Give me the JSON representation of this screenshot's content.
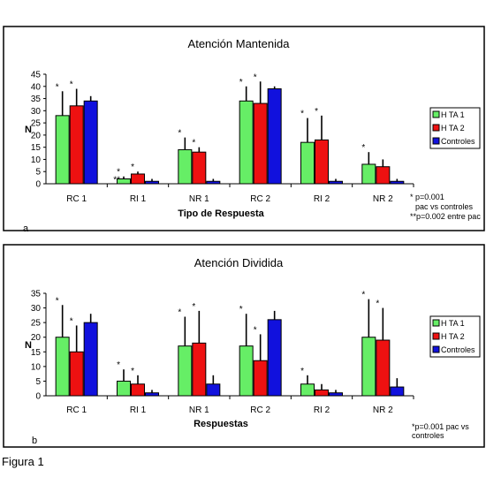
{
  "figure_caption": "Figura 1",
  "colors": {
    "hta1": "#66ee66",
    "hta2": "#ee1111",
    "controles": "#1111dd",
    "frame": "#000000"
  },
  "chart_data": [
    {
      "type": "bar",
      "panel_letter": "a",
      "title": "Atención Mantenida",
      "xlabel": "Tipo de Respuesta",
      "ylabel": "N",
      "ylim": [
        0,
        45
      ],
      "yticks": [
        "0",
        "5",
        "10",
        "15",
        "20",
        "25",
        "30",
        "35",
        "40",
        "45"
      ],
      "categories": [
        "RC 1",
        "RI 1",
        "NR 1",
        "RC 2",
        "RI 2",
        "NR 2"
      ],
      "series": [
        {
          "name": "H TA 1",
          "values": [
            28,
            2,
            14,
            34,
            17,
            8
          ],
          "err": [
            10,
            1,
            5,
            6,
            10,
            5
          ]
        },
        {
          "name": "H TA 2",
          "values": [
            32,
            4,
            13,
            33,
            18,
            7
          ],
          "err": [
            7,
            1,
            2,
            9,
            10,
            3
          ]
        },
        {
          "name": "Controles",
          "values": [
            34,
            1,
            1,
            39,
            1,
            1
          ],
          "err": [
            2,
            1,
            1,
            1,
            1,
            1
          ]
        }
      ],
      "annotations": [
        {
          "text": "*",
          "cat": 0,
          "s": 0
        },
        {
          "text": "*",
          "cat": 0,
          "s": 1
        },
        {
          "text": "*",
          "cat": 1,
          "s": 0
        },
        {
          "text": "**",
          "cat": 1,
          "s": 0
        },
        {
          "text": "*",
          "cat": 1,
          "s": 1
        },
        {
          "text": "*",
          "cat": 2,
          "s": 0
        },
        {
          "text": "*",
          "cat": 2,
          "s": 1
        },
        {
          "text": "*",
          "cat": 3,
          "s": 0
        },
        {
          "text": "*",
          "cat": 3,
          "s": 1
        },
        {
          "text": "*",
          "cat": 4,
          "s": 0
        },
        {
          "text": "*",
          "cat": 4,
          "s": 1
        },
        {
          "text": "*",
          "cat": 5,
          "s": 0
        }
      ],
      "notes": [
        "* p=0.001",
        "pac vs controles",
        "**p=0.002 entre pac"
      ],
      "legend": "right"
    },
    {
      "type": "bar",
      "panel_letter": "b",
      "title": "Atención Dividida",
      "xlabel": "Respuestas",
      "ylabel": "N",
      "ylim": [
        0,
        35
      ],
      "yticks": [
        "0",
        "5",
        "10",
        "15",
        "20",
        "25",
        "30",
        "35"
      ],
      "categories": [
        "RC 1",
        "RI 1",
        "NR 1",
        "RC 2",
        "RI 2",
        "NR 2"
      ],
      "series": [
        {
          "name": "H TA 1",
          "values": [
            20,
            5,
            17,
            17,
            4,
            20
          ],
          "err": [
            11,
            4,
            10,
            11,
            3,
            13
          ]
        },
        {
          "name": "H TA 2",
          "values": [
            15,
            4,
            18,
            12,
            2,
            19
          ],
          "err": [
            9,
            3,
            11,
            9,
            2,
            11
          ]
        },
        {
          "name": "Controles",
          "values": [
            25,
            1,
            4,
            26,
            1,
            3
          ],
          "err": [
            3,
            1,
            3,
            3,
            1,
            3
          ]
        }
      ],
      "annotations": [
        {
          "text": "*",
          "cat": 0,
          "s": 0
        },
        {
          "text": "*",
          "cat": 0,
          "s": 1
        },
        {
          "text": "*",
          "cat": 1,
          "s": 0
        },
        {
          "text": "*",
          "cat": 1,
          "s": 1
        },
        {
          "text": "*",
          "cat": 2,
          "s": 0
        },
        {
          "text": "*",
          "cat": 2,
          "s": 1
        },
        {
          "text": "*",
          "cat": 3,
          "s": 0
        },
        {
          "text": "*",
          "cat": 3,
          "s": 1
        },
        {
          "text": "*",
          "cat": 4,
          "s": 0
        },
        {
          "text": "*",
          "cat": 5,
          "s": 0
        },
        {
          "text": "*",
          "cat": 5,
          "s": 1
        }
      ],
      "notes": [
        "*p=0.001 pac vs",
        "controles"
      ],
      "legend": "right"
    }
  ]
}
